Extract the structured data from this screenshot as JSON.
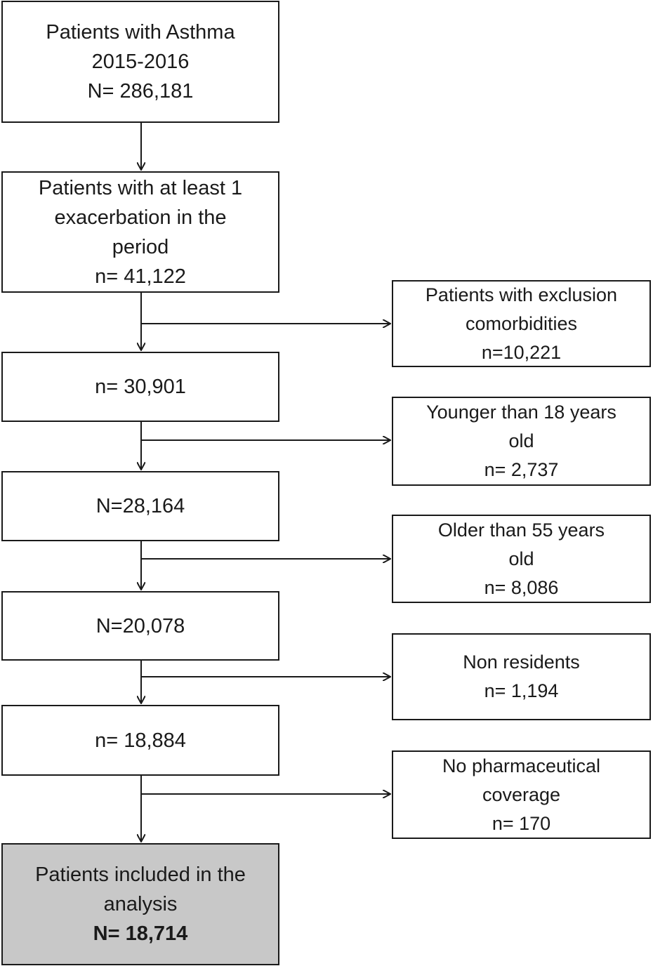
{
  "main_boxes": [
    {
      "lines": [
        "Patients with Asthma",
        "2015-2016",
        "N= 286,181"
      ]
    },
    {
      "lines": [
        "Patients with at least 1",
        "exacerbation in the",
        "period",
        "n= 41,122"
      ]
    },
    {
      "lines": [
        "n= 30,901"
      ]
    },
    {
      "lines": [
        "N=28,164"
      ]
    },
    {
      "lines": [
        "N=20,078"
      ]
    },
    {
      "lines": [
        "n= 18,884"
      ]
    },
    {
      "lines": [
        "Patients included in the",
        "analysis",
        "N= 18,714"
      ]
    }
  ],
  "exclusion_boxes": [
    {
      "lines": [
        "Patients with exclusion",
        "comorbidities",
        "n=10,221"
      ]
    },
    {
      "lines": [
        "Younger than 18 years",
        "old",
        "n= 2,737"
      ]
    },
    {
      "lines": [
        "Older than 55 years",
        "old",
        "n= 8,086"
      ]
    },
    {
      "lines": [
        "Non residents",
        "n= 1,194"
      ]
    },
    {
      "lines": [
        "No pharmaceutical",
        "coverage",
        "n= 170"
      ]
    }
  ],
  "colors": {
    "stroke": "#1a1a1a",
    "final_box_fill": "#c8c8c8"
  }
}
